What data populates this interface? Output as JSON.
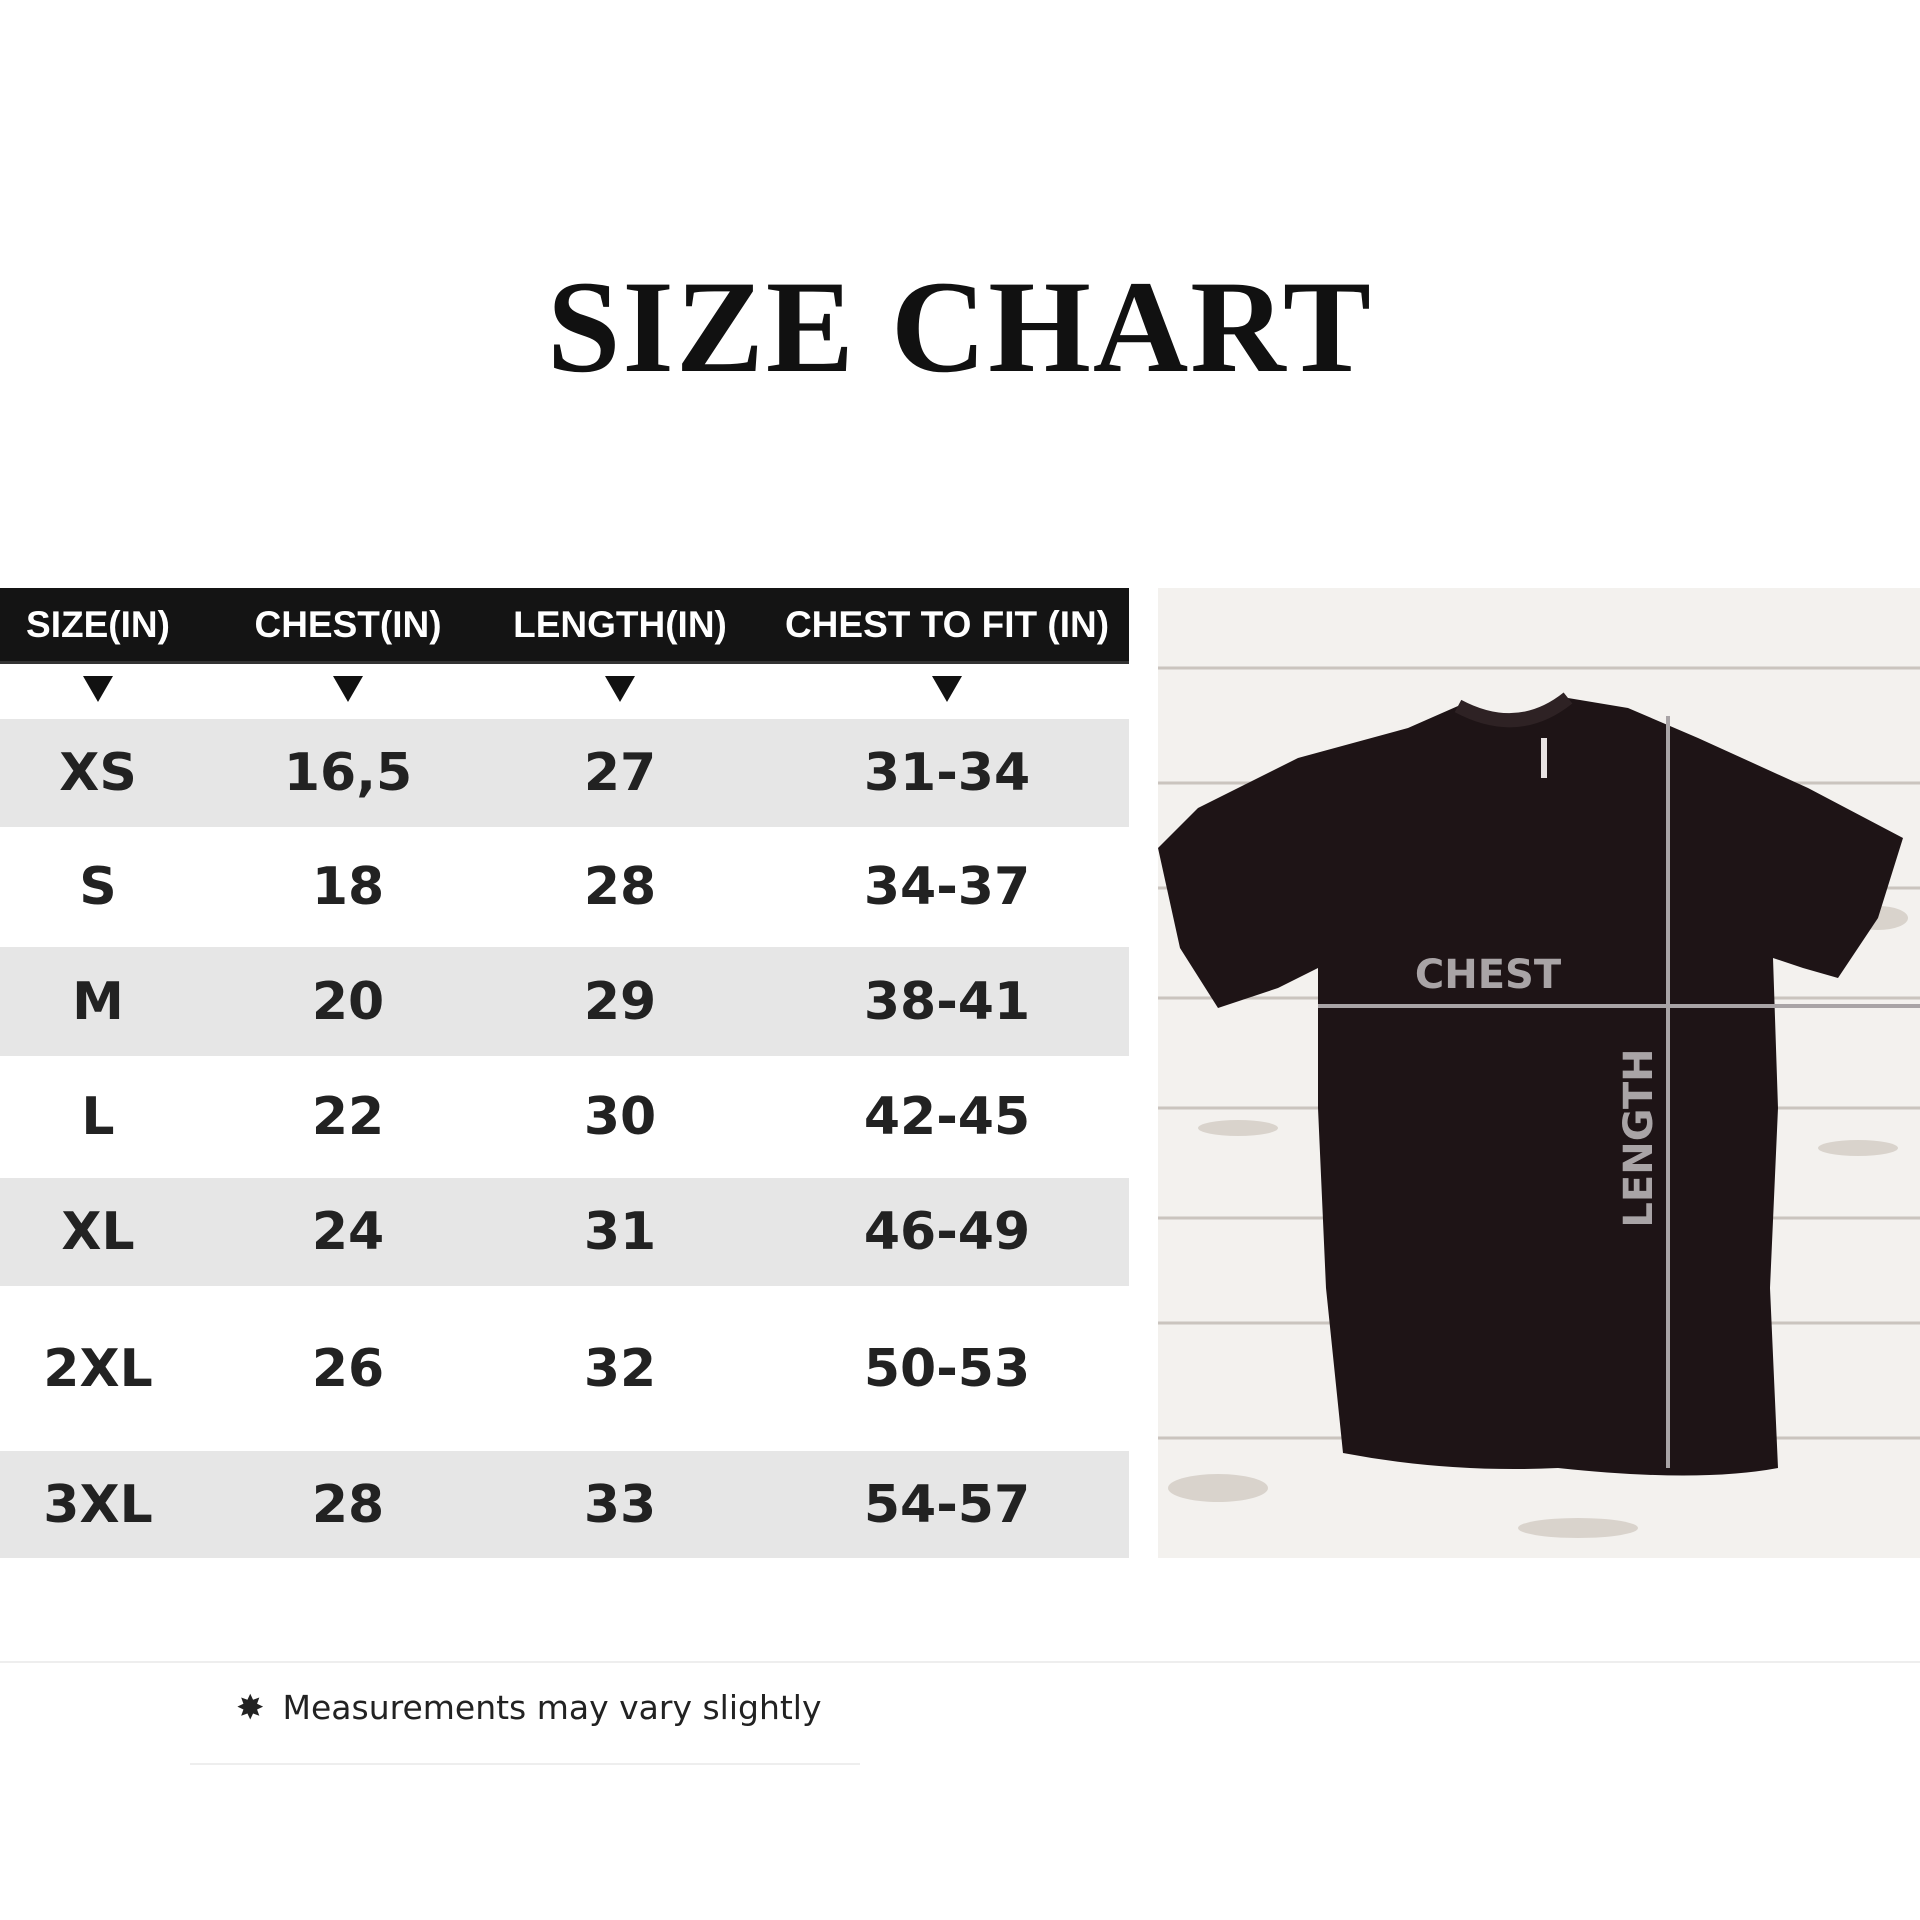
{
  "title": "SIZE CHART",
  "table": {
    "headers": [
      "SIZE(IN)",
      "CHEST(IN)",
      "LENGTH(IN)",
      "CHEST TO FIT (IN)"
    ],
    "rows": [
      [
        "XS",
        "16,5",
        "27",
        "31-34"
      ],
      [
        "S",
        "18",
        "28",
        "34-37"
      ],
      [
        "M",
        "20",
        "29",
        "38-41"
      ],
      [
        "L",
        "22",
        "30",
        "42-45"
      ],
      [
        "XL",
        "24",
        "31",
        "46-49"
      ],
      [
        "2XL",
        "26",
        "32",
        "50-53"
      ],
      [
        "3XL",
        "28",
        "33",
        "54-57"
      ]
    ]
  },
  "diagram": {
    "chest_label": "CHEST",
    "length_label": "LENGTH"
  },
  "footer": {
    "icon": "star-burst-icon",
    "note": "Measurements may vary slightly"
  },
  "colors": {
    "header_bg": "#141414",
    "row_shade": "#e6e6e6",
    "shirt": "#1e1416"
  }
}
